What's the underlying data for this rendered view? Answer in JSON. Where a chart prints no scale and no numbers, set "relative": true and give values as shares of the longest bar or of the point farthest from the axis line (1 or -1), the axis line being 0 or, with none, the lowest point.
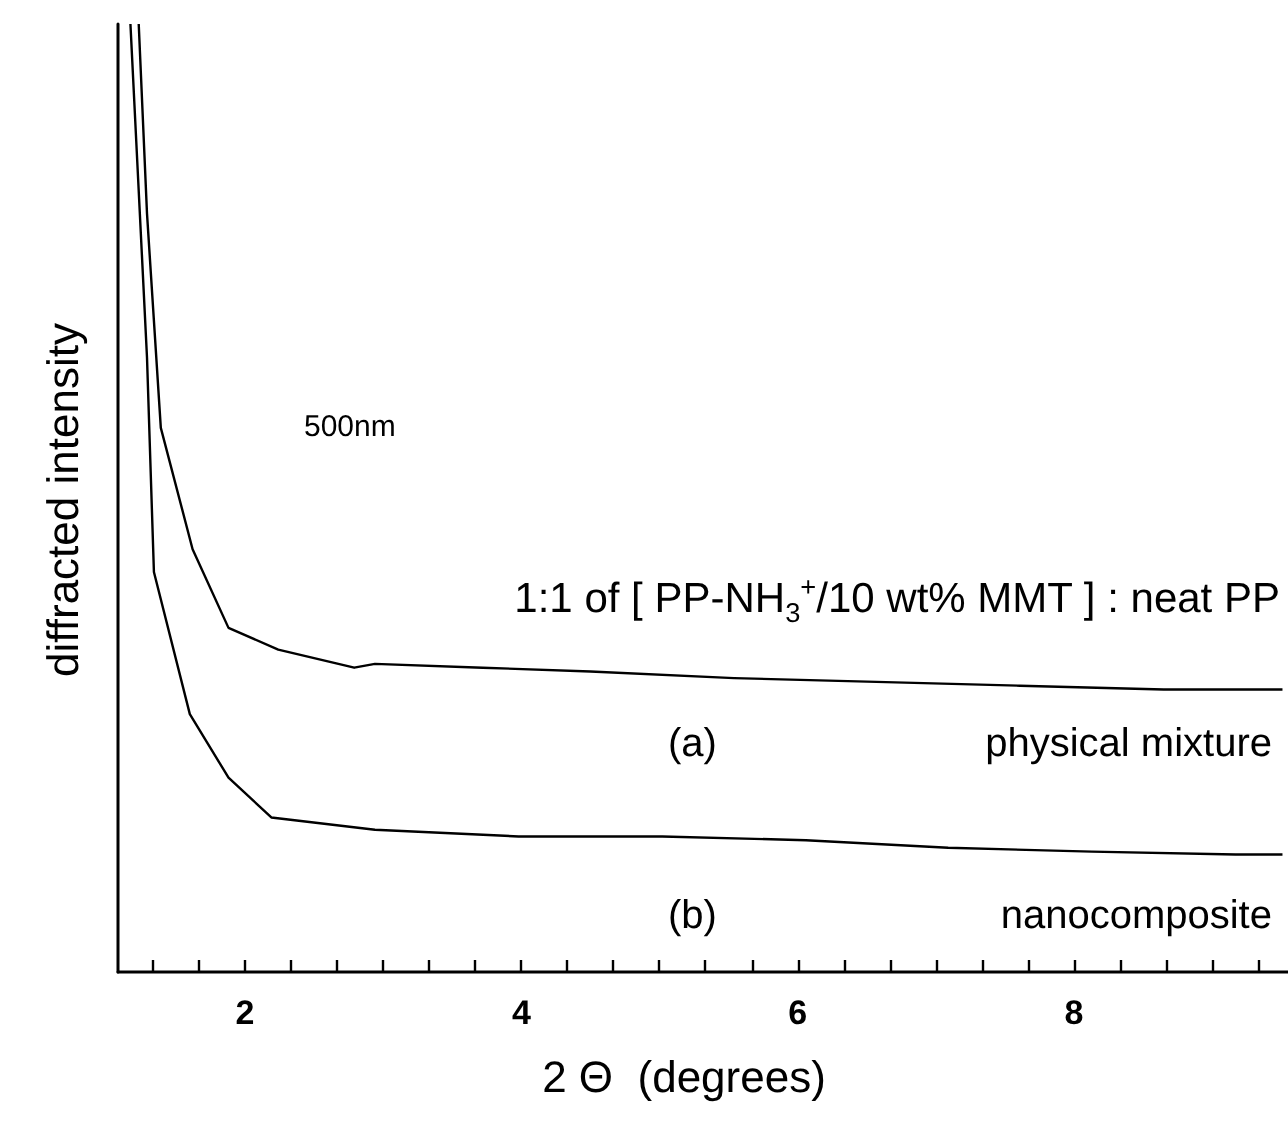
{
  "chart_data": {
    "type": "line",
    "relative": true,
    "xlabel": "2 Θ  (degrees)",
    "ylabel": "diffracted intensity",
    "annotations": [
      "500nm",
      "1:1 of [ PP-NH$_{3}$$^{+}$/10 wt% MMT ] : neat PP",
      "(a)",
      "physical mixture",
      "(b)",
      "nanocomposite"
    ],
    "xlim": [
      1.08,
      9.55
    ],
    "xticks": [
      {
        "value": 1.333,
        "label": null
      },
      {
        "value": 1.667,
        "label": null
      },
      2,
      {
        "value": 2.333,
        "label": null
      },
      {
        "value": 2.667,
        "label": null
      },
      {
        "value": 3,
        "label": null
      },
      {
        "value": 3.333,
        "label": null
      },
      {
        "value": 3.667,
        "label": null
      },
      4,
      {
        "value": 4.333,
        "label": null
      },
      {
        "value": 4.667,
        "label": null
      },
      {
        "value": 5,
        "label": null
      },
      {
        "value": 5.333,
        "label": null
      },
      {
        "value": 5.667,
        "label": null
      },
      6,
      {
        "value": 6.333,
        "label": null
      },
      {
        "value": 6.667,
        "label": null
      },
      {
        "value": 7,
        "label": null
      },
      {
        "value": 7.333,
        "label": null
      },
      {
        "value": 7.667,
        "label": null
      },
      8,
      {
        "value": 8.333,
        "label": null
      },
      {
        "value": 8.667,
        "label": null
      },
      {
        "value": 9,
        "label": null
      },
      {
        "value": 9.333,
        "label": null
      }
    ],
    "grid": false,
    "marker": "none",
    "line_style": "solid",
    "series": [
      {
        "color": "#000000",
        "x": [
          1.23,
          1.29,
          1.39,
          1.62,
          1.88,
          2.24,
          2.79,
          2.94,
          3.72,
          4.5,
          5.54,
          6.57,
          7.61,
          8.65,
          9.51
        ],
        "values": [
          1.0,
          0.8,
          0.574,
          0.446,
          0.363,
          0.34,
          0.321,
          0.325,
          0.321,
          0.317,
          0.31,
          0.306,
          0.302,
          0.298,
          0.298
        ]
      },
      {
        "color": "#000000",
        "x": [
          1.17,
          1.29,
          1.34,
          1.6,
          1.88,
          2.19,
          2.94,
          3.98,
          5.02,
          6.06,
          7.09,
          8.13,
          9.17,
          9.51
        ],
        "values": [
          1.0,
          0.648,
          0.422,
          0.272,
          0.205,
          0.163,
          0.15,
          0.143,
          0.143,
          0.139,
          0.131,
          0.127,
          0.124,
          0.124
        ]
      }
    ]
  }
}
